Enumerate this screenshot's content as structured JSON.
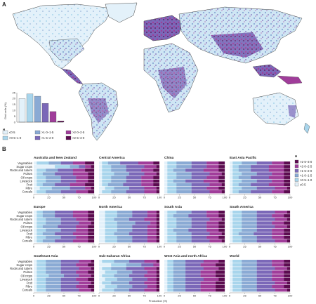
{
  "figure": {
    "panel_a_label": "A",
    "panel_b_label": "B"
  },
  "colors": {
    "classes": [
      "#e3f1fa",
      "#a8d5ec",
      "#8aaad4",
      "#7b68b8",
      "#a03d9a",
      "#5b0b4f"
    ],
    "land_base": "#dcecf6",
    "ocean": "#ffffff",
    "border": "#333333"
  },
  "map_legend": {
    "heading": "H",
    "items": [
      {
        "label": "≤0·5",
        "class": 0
      },
      {
        "label": ">0·5–1·0",
        "class": 1
      },
      {
        "label": ">1·0–1·5",
        "class": 2
      },
      {
        "label": ">1·5–2·0",
        "class": 3
      },
      {
        "label": ">2·0–2·5",
        "class": 4
      },
      {
        "label": ">2·5–3·0",
        "class": 5
      }
    ]
  },
  "inset_histogram": {
    "ylabel": "Grid cells (%)",
    "y_ticks": [
      "0",
      "5",
      "10",
      "15",
      "20",
      "25"
    ],
    "ylim": [
      0,
      25
    ]
  },
  "chart_data": [
    {
      "type": "bar",
      "title": "",
      "xlabel": "",
      "ylabel": "Grid cells (%)",
      "categories": [
        "≤0·5",
        ">0·5–1·0",
        ">1·0–1·5",
        ">1·5–2·0",
        ">2·0–2·5",
        ">2·5–3·0"
      ],
      "values": [
        20,
        24,
        22,
        16,
        9,
        1
      ],
      "ylim": [
        0,
        25
      ]
    },
    {
      "type": "bar",
      "stacked": true,
      "orientation": "horizontal",
      "xlabel": "Production (%)",
      "x_ticks": [
        "0",
        "25",
        "50",
        "75",
        "100"
      ],
      "xlim": [
        0,
        100
      ],
      "legend": {
        "heading": "H",
        "items": [
          ">2·5–3·0",
          ">2·0–2·5",
          ">1·5–2·0",
          ">1·0–1·5",
          ">0·5–1·0",
          "≤0·5"
        ],
        "placement": "right"
      },
      "categories": [
        "Vegetables",
        "Sugar crops",
        "Roots and tubers",
        "Pulses",
        "Oil crops",
        "Livestock",
        "Fruit",
        "Fibre",
        "Cereals"
      ],
      "panels": [
        {
          "title": "Australia and New Zealand",
          "rows": [
            [
              5,
              20,
              20,
              20,
              20,
              15
            ],
            [
              35,
              25,
              15,
              10,
              10,
              5
            ],
            [
              5,
              15,
              20,
              25,
              20,
              15
            ],
            [
              5,
              10,
              20,
              30,
              25,
              10
            ],
            [
              5,
              15,
              25,
              25,
              20,
              10
            ],
            [
              5,
              15,
              25,
              25,
              20,
              10
            ],
            [
              5,
              10,
              20,
              25,
              25,
              15
            ],
            [
              10,
              20,
              30,
              25,
              10,
              5
            ],
            [
              5,
              15,
              25,
              25,
              20,
              10
            ]
          ]
        },
        {
          "title": "Central America",
          "rows": [
            [
              5,
              10,
              20,
              30,
              25,
              10
            ],
            [
              5,
              15,
              25,
              30,
              20,
              5
            ],
            [
              5,
              15,
              25,
              25,
              20,
              10
            ],
            [
              5,
              20,
              25,
              25,
              20,
              5
            ],
            [
              5,
              15,
              25,
              25,
              20,
              10
            ],
            [
              5,
              15,
              25,
              25,
              20,
              10
            ],
            [
              5,
              10,
              25,
              30,
              20,
              10
            ],
            [
              10,
              15,
              25,
              25,
              20,
              5
            ],
            [
              5,
              15,
              25,
              30,
              20,
              5
            ]
          ]
        },
        {
          "title": "China",
          "rows": [
            [
              5,
              15,
              25,
              25,
              20,
              10
            ],
            [
              5,
              15,
              25,
              25,
              20,
              10
            ],
            [
              5,
              10,
              20,
              30,
              25,
              10
            ],
            [
              5,
              15,
              25,
              30,
              20,
              5
            ],
            [
              5,
              15,
              25,
              25,
              20,
              10
            ],
            [
              5,
              10,
              20,
              30,
              25,
              10
            ],
            [
              5,
              15,
              25,
              30,
              20,
              5
            ],
            [
              5,
              15,
              25,
              25,
              20,
              10
            ],
            [
              5,
              15,
              25,
              30,
              20,
              5
            ]
          ]
        },
        {
          "title": "East Asia Pacific",
          "rows": [
            [
              5,
              15,
              25,
              25,
              20,
              10
            ],
            [
              5,
              10,
              20,
              30,
              25,
              10
            ],
            [
              5,
              10,
              20,
              30,
              25,
              10
            ],
            [
              5,
              15,
              25,
              25,
              20,
              10
            ],
            [
              5,
              10,
              20,
              30,
              25,
              10
            ],
            [
              5,
              15,
              25,
              25,
              20,
              10
            ],
            [
              5,
              10,
              20,
              30,
              25,
              10
            ],
            [
              5,
              15,
              25,
              30,
              20,
              5
            ],
            [
              5,
              10,
              20,
              35,
              20,
              10
            ]
          ]
        },
        {
          "title": "Europe",
          "rows": [
            [
              5,
              10,
              20,
              30,
              25,
              10
            ],
            [
              5,
              10,
              20,
              30,
              25,
              10
            ],
            [
              5,
              15,
              25,
              25,
              20,
              10
            ],
            [
              5,
              15,
              25,
              30,
              20,
              5
            ],
            [
              5,
              10,
              25,
              30,
              20,
              10
            ],
            [
              5,
              15,
              25,
              25,
              20,
              10
            ],
            [
              5,
              10,
              20,
              30,
              25,
              10
            ],
            [
              5,
              15,
              25,
              25,
              20,
              10
            ],
            [
              5,
              10,
              20,
              30,
              25,
              10
            ]
          ]
        },
        {
          "title": "North America",
          "rows": [
            [
              10,
              20,
              25,
              25,
              15,
              5
            ],
            [
              10,
              20,
              25,
              25,
              15,
              5
            ],
            [
              10,
              15,
              25,
              25,
              20,
              5
            ],
            [
              10,
              20,
              30,
              25,
              10,
              5
            ],
            [
              10,
              20,
              25,
              25,
              15,
              5
            ],
            [
              10,
              20,
              25,
              25,
              15,
              5
            ],
            [
              10,
              15,
              25,
              30,
              15,
              5
            ],
            [
              10,
              20,
              25,
              25,
              15,
              5
            ],
            [
              10,
              20,
              25,
              25,
              15,
              5
            ]
          ]
        },
        {
          "title": "South Asia",
          "rows": [
            [
              5,
              15,
              25,
              25,
              20,
              10
            ],
            [
              5,
              10,
              25,
              30,
              20,
              10
            ],
            [
              5,
              15,
              25,
              30,
              20,
              5
            ],
            [
              5,
              15,
              25,
              25,
              20,
              10
            ],
            [
              5,
              15,
              25,
              25,
              20,
              10
            ],
            [
              5,
              10,
              25,
              30,
              20,
              10
            ],
            [
              5,
              15,
              25,
              30,
              20,
              5
            ],
            [
              5,
              15,
              25,
              25,
              20,
              10
            ],
            [
              5,
              15,
              25,
              30,
              20,
              5
            ]
          ]
        },
        {
          "title": "South America",
          "rows": [
            [
              5,
              15,
              25,
              30,
              20,
              5
            ],
            [
              5,
              15,
              25,
              25,
              20,
              10
            ],
            [
              5,
              15,
              25,
              30,
              20,
              5
            ],
            [
              5,
              15,
              25,
              25,
              20,
              10
            ],
            [
              5,
              15,
              25,
              30,
              20,
              5
            ],
            [
              5,
              15,
              25,
              25,
              20,
              10
            ],
            [
              5,
              10,
              25,
              30,
              20,
              10
            ],
            [
              5,
              15,
              25,
              25,
              20,
              10
            ],
            [
              5,
              15,
              25,
              30,
              20,
              5
            ]
          ]
        },
        {
          "title": "Southeast Asia",
          "rows": [
            [
              5,
              15,
              25,
              30,
              20,
              5
            ],
            [
              5,
              15,
              25,
              25,
              20,
              10
            ],
            [
              5,
              15,
              25,
              30,
              20,
              5
            ],
            [
              5,
              15,
              25,
              25,
              20,
              10
            ],
            [
              5,
              20,
              25,
              25,
              20,
              5
            ],
            [
              5,
              15,
              25,
              25,
              20,
              10
            ],
            [
              5,
              15,
              25,
              30,
              20,
              5
            ],
            [
              5,
              15,
              25,
              25,
              20,
              10
            ],
            [
              5,
              15,
              25,
              30,
              20,
              5
            ]
          ]
        },
        {
          "title": "Sub-Saharan Africa",
          "rows": [
            [
              5,
              20,
              25,
              25,
              20,
              5
            ],
            [
              20,
              25,
              25,
              20,
              10,
              0
            ],
            [
              5,
              15,
              25,
              30,
              20,
              5
            ],
            [
              10,
              20,
              25,
              25,
              15,
              5
            ],
            [
              5,
              20,
              25,
              25,
              20,
              5
            ],
            [
              10,
              20,
              25,
              25,
              15,
              5
            ],
            [
              5,
              15,
              30,
              25,
              20,
              5
            ],
            [
              10,
              20,
              25,
              25,
              15,
              5
            ],
            [
              5,
              20,
              25,
              25,
              20,
              5
            ]
          ]
        },
        {
          "title": "West Asia and north Africa",
          "rows": [
            [
              5,
              10,
              20,
              30,
              25,
              10
            ],
            [
              5,
              10,
              20,
              25,
              25,
              15
            ],
            [
              5,
              10,
              20,
              30,
              25,
              10
            ],
            [
              5,
              10,
              20,
              25,
              25,
              15
            ],
            [
              5,
              10,
              20,
              25,
              25,
              15
            ],
            [
              5,
              10,
              20,
              30,
              25,
              10
            ],
            [
              5,
              10,
              20,
              25,
              25,
              15
            ],
            [
              5,
              10,
              20,
              25,
              25,
              15
            ],
            [
              5,
              10,
              20,
              25,
              25,
              15
            ]
          ]
        },
        {
          "title": "World",
          "rows": [
            [
              5,
              15,
              25,
              25,
              20,
              10
            ],
            [
              5,
              15,
              25,
              25,
              20,
              10
            ],
            [
              5,
              15,
              25,
              30,
              20,
              5
            ],
            [
              5,
              15,
              25,
              25,
              20,
              10
            ],
            [
              5,
              15,
              25,
              25,
              20,
              10
            ],
            [
              5,
              15,
              25,
              25,
              20,
              10
            ],
            [
              5,
              15,
              25,
              30,
              20,
              5
            ],
            [
              5,
              15,
              25,
              25,
              20,
              10
            ],
            [
              5,
              15,
              25,
              30,
              20,
              5
            ]
          ]
        }
      ]
    }
  ]
}
